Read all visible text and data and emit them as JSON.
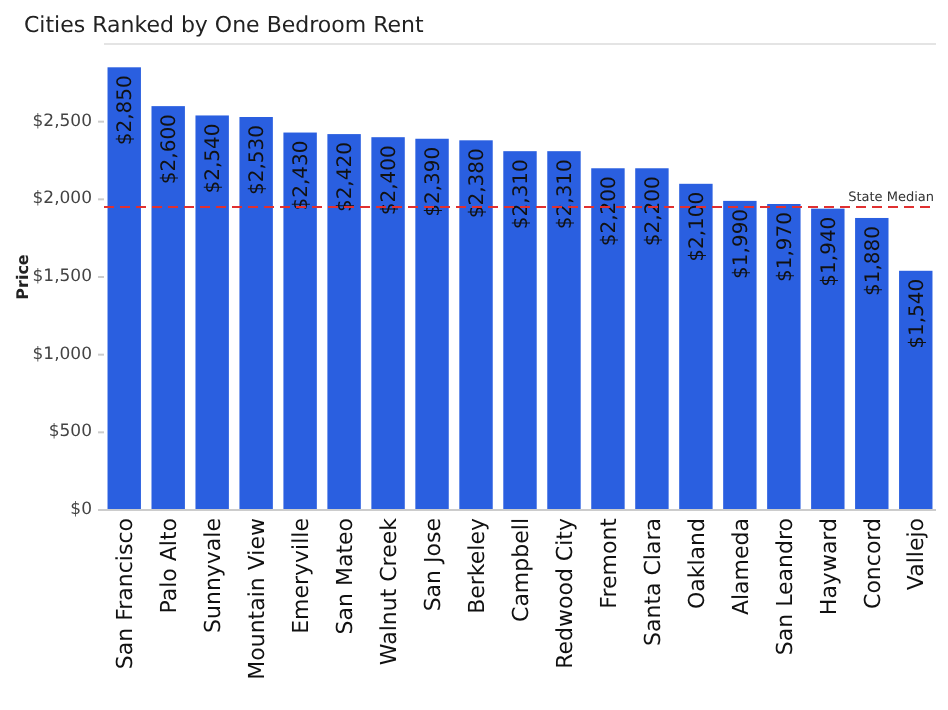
{
  "chart_data": {
    "type": "bar",
    "title": "Cities Ranked by One Bedroom Rent",
    "ylabel": "Price",
    "categories": [
      "San Francisco",
      "Palo Alto",
      "Sunnyvale",
      "Mountain View",
      "Emeryville",
      "San Mateo",
      "Walnut Creek",
      "San Jose",
      "Berkeley",
      "Campbell",
      "Redwood City",
      "Fremont",
      "Santa Clara",
      "Oakland",
      "Alameda",
      "San Leandro",
      "Hayward",
      "Concord",
      "Vallejo"
    ],
    "values": [
      2850,
      2600,
      2540,
      2530,
      2430,
      2420,
      2400,
      2390,
      2380,
      2310,
      2310,
      2200,
      2200,
      2100,
      1990,
      1970,
      1940,
      1880,
      1540
    ],
    "value_labels": [
      "$2,850",
      "$2,600",
      "$2,540",
      "$2,530",
      "$2,430",
      "$2,420",
      "$2,400",
      "$2,390",
      "$2,380",
      "$2,310",
      "$2,310",
      "$2,200",
      "$2,200",
      "$2,100",
      "$1,990",
      "$1,970",
      "$1,940",
      "$1,880",
      "$1,540"
    ],
    "color": "#2a5fe0",
    "ylim": [
      0,
      3000
    ],
    "yticks": [
      {
        "value": 0,
        "label": "$0"
      },
      {
        "value": 500,
        "label": "$500"
      },
      {
        "value": 1000,
        "label": "$1,000"
      },
      {
        "value": 1500,
        "label": "$1,500"
      },
      {
        "value": 2000,
        "label": "$2,000"
      },
      {
        "value": 2500,
        "label": "$2,500"
      }
    ],
    "ref_lines": [
      {
        "axis": "y",
        "value": 1950,
        "label": "State Median",
        "color": "#e03030",
        "line_style": "dashed"
      }
    ],
    "grid": false
  }
}
